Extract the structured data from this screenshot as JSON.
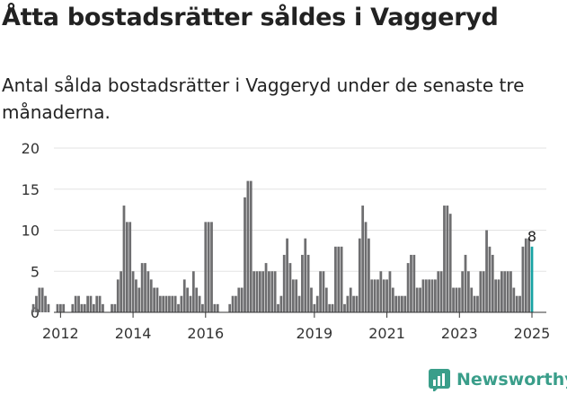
{
  "title": "Åtta bostadsrätter såldes i Vaggeryd",
  "subtitle": "Antal sålda bostadsrätter i Vaggeryd under de senaste tre månaderna.",
  "brand": {
    "name": "Newsworthy",
    "color": "#3a9e8a"
  },
  "colors": {
    "bar": "#6e6e70",
    "highlight": "#17a2a3",
    "grid": "#e3e3e3",
    "axis": "#333333"
  },
  "chart_data": {
    "type": "bar",
    "x_start": "2011-12",
    "x_end": "2025-01",
    "x_ticks": [
      "2012",
      "2014",
      "2016",
      "2019",
      "2021",
      "2023",
      "2025"
    ],
    "y_ticks": [
      0,
      5,
      10,
      15,
      20
    ],
    "ylim": [
      0,
      20
    ],
    "highlight_label": "8",
    "grid": true,
    "series": [
      {
        "values": [
          1,
          2,
          3,
          3,
          2,
          1,
          0,
          0,
          1,
          1,
          1,
          0,
          0,
          1,
          2,
          2,
          1,
          1,
          2,
          2,
          1,
          2,
          2,
          1,
          0,
          0,
          1,
          1,
          4,
          5,
          13,
          11,
          11,
          5,
          4,
          3,
          6,
          6,
          5,
          4,
          3,
          3,
          2,
          2,
          2,
          2,
          2,
          2,
          1,
          2,
          4,
          3,
          2,
          5,
          3,
          2,
          1,
          11,
          11,
          11,
          1,
          1,
          0,
          0,
          0,
          1,
          2,
          2,
          3,
          3,
          14,
          16,
          16,
          5,
          5,
          5,
          5,
          6,
          5,
          5,
          5,
          1,
          2,
          7,
          9,
          6,
          4,
          4,
          2,
          7,
          9,
          7,
          3,
          1,
          2,
          5,
          5,
          3,
          1,
          1,
          8,
          8,
          8,
          1,
          2,
          3,
          2,
          2,
          9,
          13,
          11,
          9,
          4,
          4,
          4,
          5,
          4,
          4,
          5,
          3,
          2,
          2,
          2,
          2,
          6,
          7,
          7,
          3,
          3,
          4,
          4,
          4,
          4,
          4,
          5,
          5,
          13,
          13,
          12,
          3,
          3,
          3,
          5,
          7,
          5,
          3,
          2,
          2,
          5,
          5,
          10,
          8,
          7,
          4,
          4,
          5,
          5,
          5,
          5,
          3,
          2,
          2,
          8,
          9,
          9,
          8
        ]
      }
    ]
  }
}
